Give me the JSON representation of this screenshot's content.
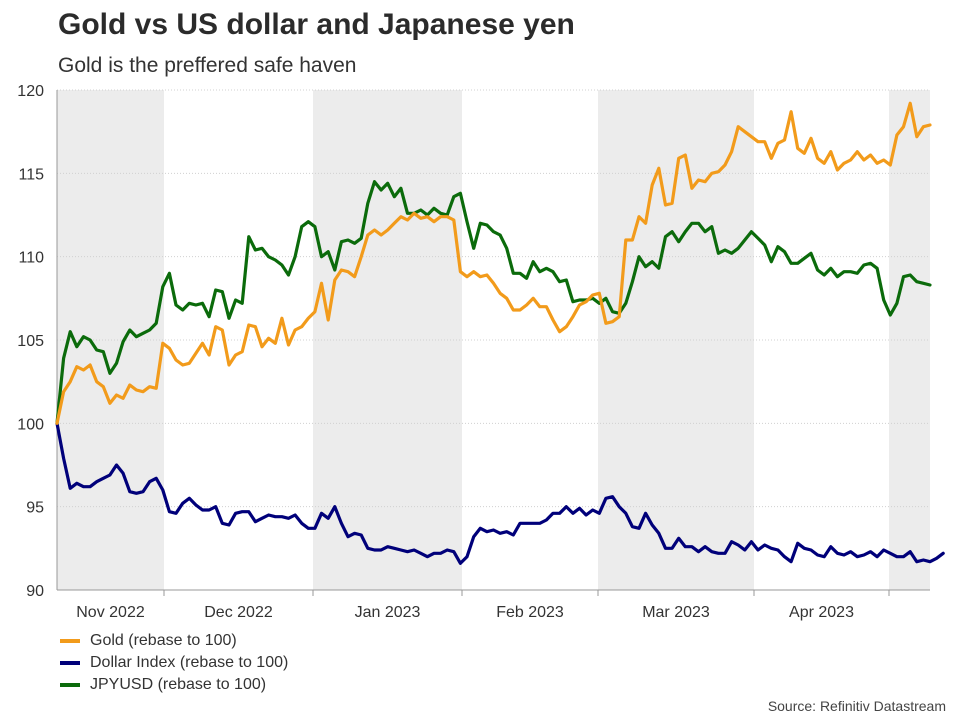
{
  "header": {
    "title": "Gold vs US dollar and Japanese yen",
    "subtitle": "Gold is the preffered safe haven"
  },
  "source": "Source: Refinitiv Datastream",
  "colors": {
    "gold": "#f29b1b",
    "dollar": "#00007a",
    "jpy": "#0b6b0b",
    "shade": "#ececec",
    "grid": "#d0d0d0"
  },
  "chart_data": {
    "type": "line",
    "title": "Gold vs US dollar and Japanese yen",
    "subtitle": "Gold is the preffered safe haven",
    "xlabel": "",
    "ylabel": "",
    "ylim": [
      90,
      120
    ],
    "yticks": [
      90,
      95,
      100,
      105,
      110,
      115,
      120
    ],
    "grid": true,
    "legend_position": "bottom-left",
    "x_tick_labels": [
      "Nov 2022",
      "Dec 2022",
      "Jan 2023",
      "Feb 2023",
      "Mar 2023",
      "Apr 2023"
    ],
    "series": [
      {
        "name": "Gold (rebase to 100)",
        "key": "gold",
        "values": [
          100,
          101.9,
          102.5,
          103.4,
          103.2,
          103.5,
          102.5,
          102.2,
          101.2,
          101.7,
          101.5,
          102.3,
          102.0,
          101.9,
          102.2,
          102.1,
          104.8,
          104.5,
          103.8,
          103.5,
          103.6,
          104.2,
          104.8,
          104.1,
          105.8,
          105.6,
          103.5,
          104.1,
          104.3,
          105.9,
          105.8,
          104.6,
          105.1,
          104.8,
          106.3,
          104.7,
          105.6,
          105.8,
          106.3,
          106.7,
          108.4,
          106.2,
          108.6,
          109.2,
          109.1,
          108.8,
          110.0,
          111.3,
          111.6,
          111.3,
          111.6,
          112.0,
          112.4,
          112.2,
          112.6,
          112.3,
          112.4,
          112.1,
          112.4,
          112.4,
          112.2,
          109.1,
          108.8,
          109.1,
          108.8,
          108.9,
          108.4,
          107.8,
          107.5,
          106.8,
          106.8,
          107.1,
          107.5,
          107.0,
          107.0,
          106.2,
          105.5,
          105.8,
          106.4,
          107.1,
          107.3,
          107.7,
          107.8,
          106.0,
          106.1,
          106.4,
          111.0,
          111.0,
          112.4,
          112.0,
          114.3,
          115.3,
          113.1,
          113.2,
          115.9,
          116.1,
          114.1,
          114.6,
          114.5,
          115.0,
          115.1,
          115.5,
          116.3,
          117.8,
          117.5,
          117.2,
          116.9,
          116.9,
          115.9,
          116.8,
          117.0,
          118.7,
          116.5,
          116.2,
          117.1,
          115.9,
          115.6,
          116.3,
          115.2,
          115.6,
          115.8,
          116.3,
          115.8,
          116.1,
          115.6,
          115.8,
          115.5,
          117.3,
          117.8,
          119.2,
          117.2,
          117.8,
          117.9
        ]
      },
      {
        "name": "Dollar Index (rebase to 100)",
        "key": "dollar",
        "values": [
          100,
          97.9,
          96.1,
          96.4,
          96.2,
          96.2,
          96.5,
          96.7,
          96.9,
          97.5,
          97.0,
          95.9,
          95.8,
          95.9,
          96.5,
          96.7,
          96.0,
          94.7,
          94.6,
          95.2,
          95.5,
          95.1,
          94.8,
          94.8,
          95.0,
          94.0,
          93.9,
          94.6,
          94.7,
          94.7,
          94.1,
          94.3,
          94.5,
          94.4,
          94.4,
          94.3,
          94.5,
          94.0,
          93.7,
          93.7,
          94.6,
          94.3,
          95.0,
          94.0,
          93.2,
          93.4,
          93.3,
          92.5,
          92.4,
          92.4,
          92.6,
          92.5,
          92.4,
          92.3,
          92.4,
          92.2,
          92.0,
          92.2,
          92.2,
          92.4,
          92.3,
          91.6,
          92.0,
          93.2,
          93.7,
          93.5,
          93.6,
          93.4,
          93.5,
          93.3,
          94.0,
          94.0,
          94.0,
          94.0,
          94.2,
          94.6,
          94.6,
          95.0,
          94.6,
          94.9,
          94.5,
          94.8,
          94.6,
          95.5,
          95.6,
          95.0,
          94.6,
          93.8,
          93.7,
          94.6,
          93.9,
          93.4,
          92.5,
          92.5,
          93.1,
          92.6,
          92.6,
          92.3,
          92.6,
          92.3,
          92.2,
          92.2,
          92.9,
          92.7,
          92.4,
          92.9,
          92.4,
          92.7,
          92.5,
          92.4,
          92.0,
          91.7,
          92.8,
          92.5,
          92.4,
          92.1,
          92.0,
          92.6,
          92.2,
          92.1,
          92.3,
          92.0,
          92.1,
          92.3,
          92.0,
          92.4,
          92.2,
          92.0,
          92.0,
          92.3,
          91.7,
          91.8,
          91.7,
          91.9,
          92.2
        ]
      },
      {
        "name": "JPYUSD (rebase to 100)",
        "key": "jpy",
        "values": [
          100,
          103.9,
          105.5,
          104.6,
          105.2,
          105.0,
          104.4,
          104.3,
          103.0,
          103.6,
          104.9,
          105.6,
          105.2,
          105.4,
          105.6,
          106.0,
          108.2,
          109.0,
          107.1,
          106.8,
          107.2,
          107.1,
          107.2,
          106.4,
          108.0,
          107.9,
          106.3,
          107.4,
          107.2,
          111.2,
          110.4,
          110.5,
          110.0,
          109.8,
          109.5,
          108.9,
          110.0,
          111.8,
          112.1,
          111.8,
          110.0,
          110.3,
          109.2,
          110.9,
          111.0,
          110.8,
          111.1,
          113.2,
          114.5,
          114.0,
          114.4,
          113.6,
          114.1,
          112.6,
          112.6,
          112.8,
          112.5,
          112.9,
          112.6,
          112.5,
          113.6,
          113.8,
          112.1,
          110.5,
          112.0,
          111.9,
          111.5,
          111.3,
          110.5,
          109.0,
          109.0,
          108.7,
          109.7,
          109.1,
          109.3,
          109.1,
          108.5,
          108.6,
          107.3,
          107.4,
          107.4,
          107.5,
          107.2,
          107.5,
          106.7,
          106.6,
          107.2,
          108.5,
          110.0,
          109.4,
          109.7,
          109.3,
          111.2,
          111.5,
          110.9,
          111.5,
          112.0,
          112.0,
          111.5,
          111.8,
          110.2,
          110.4,
          110.2,
          110.5,
          111.0,
          111.5,
          111.1,
          110.7,
          109.7,
          110.6,
          110.3,
          109.6,
          109.6,
          109.9,
          110.2,
          109.2,
          108.9,
          109.3,
          108.8,
          109.1,
          109.1,
          109.0,
          109.5,
          109.6,
          109.3,
          107.4,
          106.5,
          107.2,
          108.8,
          108.9,
          108.5,
          108.4,
          108.3
        ]
      }
    ]
  }
}
